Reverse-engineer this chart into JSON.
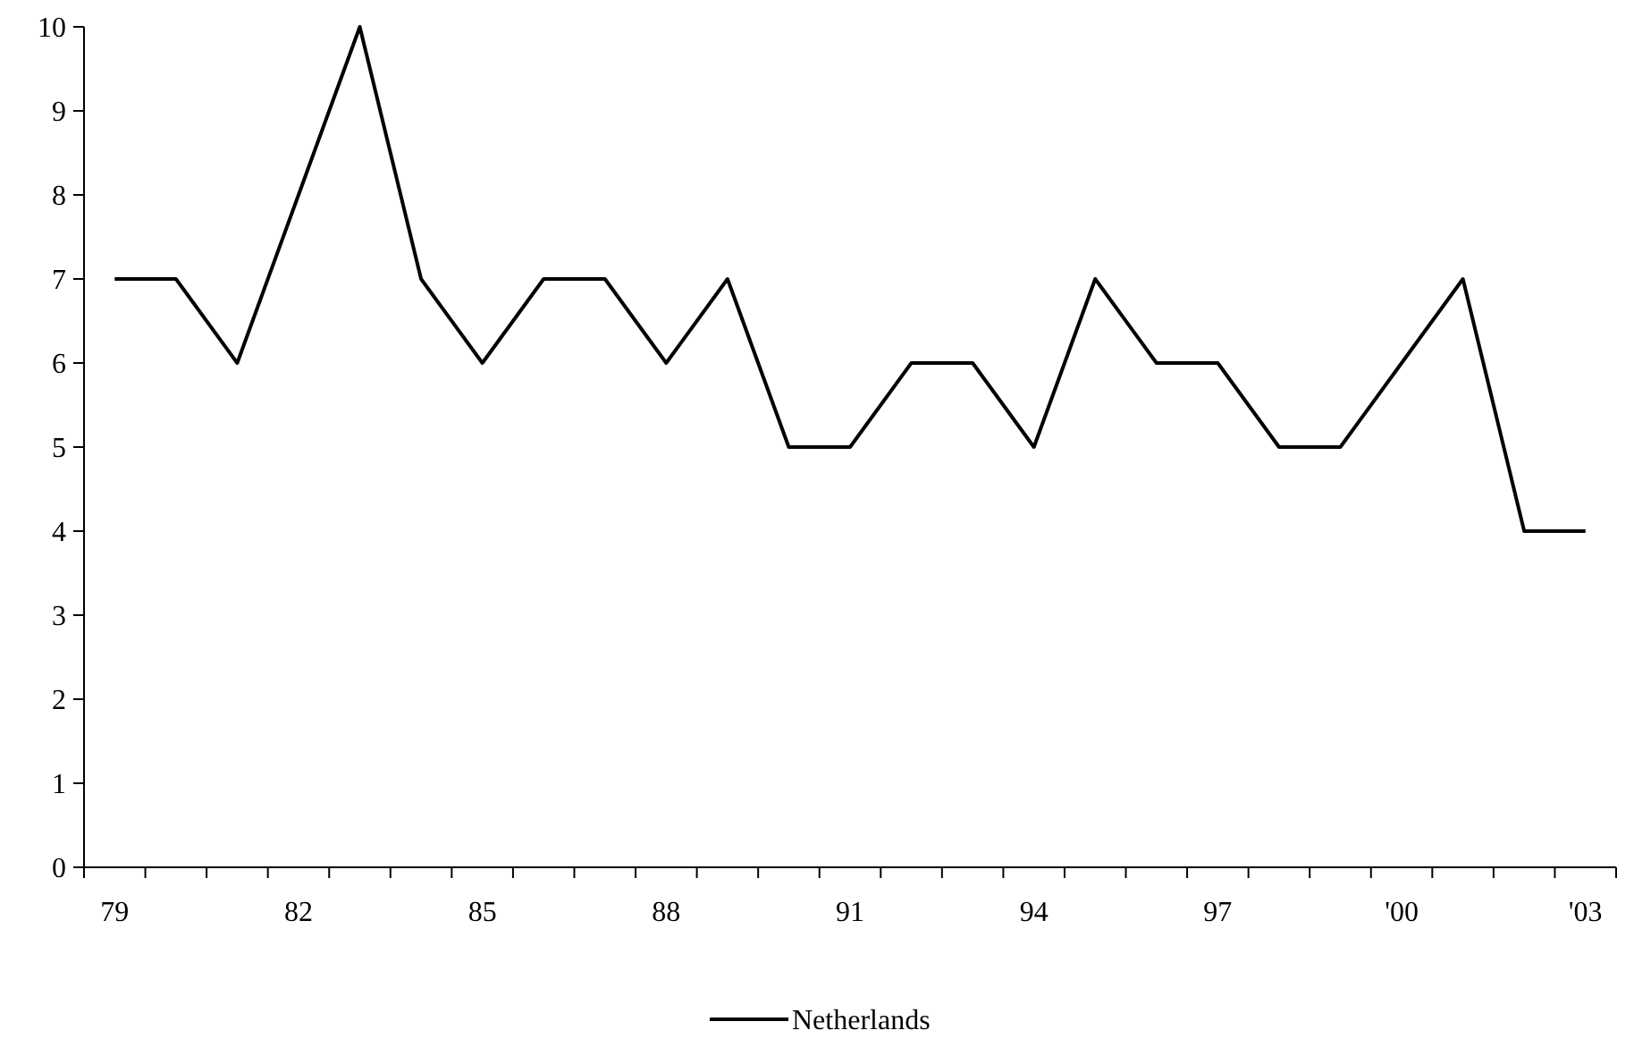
{
  "chart_data": {
    "type": "line",
    "categories": [
      "79",
      null,
      null,
      "82",
      null,
      null,
      "85",
      null,
      null,
      "88",
      null,
      null,
      "91",
      null,
      null,
      "94",
      null,
      null,
      "97",
      null,
      null,
      "'00",
      null,
      null,
      "'03"
    ],
    "series": [
      {
        "name": "Netherlands",
        "color": "#000000",
        "values": [
          7,
          7,
          6,
          8,
          10,
          7,
          6,
          7,
          7,
          6,
          7,
          5,
          5,
          6,
          6,
          5,
          7,
          6,
          6,
          5,
          5,
          6,
          7,
          4,
          4
        ]
      }
    ],
    "ylim": [
      0,
      10
    ],
    "yticks": [
      0,
      1,
      2,
      3,
      4,
      5,
      6,
      7,
      8,
      9,
      10
    ],
    "legend": "bottom"
  }
}
